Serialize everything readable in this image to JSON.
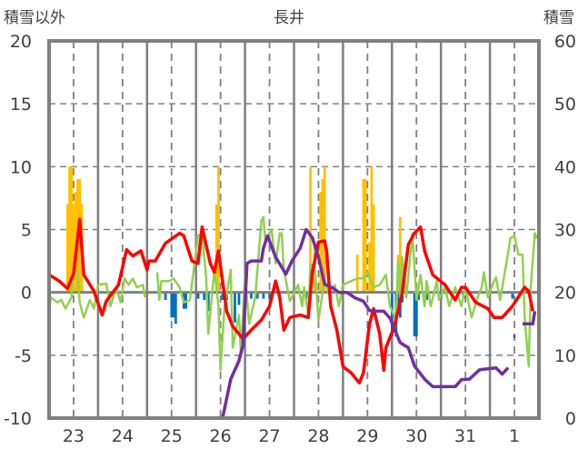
{
  "chart_data": {
    "type": "line",
    "title": "長井",
    "left_axis_label": "積雪以外",
    "right_axis_label": "積雪",
    "left_ylim": [
      -10,
      20
    ],
    "left_ticks": [
      20,
      15,
      10,
      5,
      0,
      -5,
      -10
    ],
    "right_ylim": [
      0,
      60
    ],
    "right_ticks": [
      60,
      50,
      40,
      30,
      20,
      10,
      0
    ],
    "x_unit": "hours from start of plot",
    "xlim": [
      0,
      240
    ],
    "x_tick_labels": [
      "23",
      "24",
      "25",
      "26",
      "27",
      "28",
      "29",
      "30",
      "31",
      "1"
    ],
    "grid": true,
    "colors": {
      "red": "#FF0000",
      "green": "#92D050",
      "purple": "#7030A0",
      "orange": "#FFC000",
      "blue": "#0070C0"
    },
    "series": [
      {
        "name": "red",
        "axis": "left",
        "color": "#FF0000",
        "points": [
          [
            0,
            1.4
          ],
          [
            5,
            0.9
          ],
          [
            9,
            0.3
          ],
          [
            12,
            1.5
          ],
          [
            15,
            5.8
          ],
          [
            17,
            1.4
          ],
          [
            22,
            0.1
          ],
          [
            26,
            -1.8
          ],
          [
            28,
            -0.7
          ],
          [
            34,
            0.6
          ],
          [
            38,
            3.4
          ],
          [
            41,
            2.9
          ],
          [
            45,
            3.3
          ],
          [
            48,
            1.8
          ],
          [
            49,
            2.5
          ],
          [
            52,
            2.5
          ],
          [
            57,
            3.9
          ],
          [
            64,
            4.7
          ],
          [
            66,
            4.5
          ],
          [
            70,
            2.5
          ],
          [
            73,
            2.3
          ],
          [
            75,
            5.2
          ],
          [
            79,
            2.3
          ],
          [
            81,
            1.6
          ],
          [
            83,
            3.3
          ],
          [
            87,
            -1.5
          ],
          [
            90,
            -2.7
          ],
          [
            95,
            -3.7
          ],
          [
            99,
            -3
          ],
          [
            104,
            -2.2
          ],
          [
            108,
            -1.1
          ],
          [
            111,
            0.9
          ],
          [
            113,
            -0.4
          ],
          [
            115,
            -3
          ],
          [
            118,
            -2
          ],
          [
            123,
            -1.8
          ],
          [
            127,
            -2
          ],
          [
            129,
            1.6
          ],
          [
            132,
            4
          ],
          [
            135,
            4.1
          ],
          [
            136,
            3.3
          ],
          [
            138,
            -1.1
          ],
          [
            141,
            -3
          ],
          [
            144,
            -5.9
          ],
          [
            148,
            -6.4
          ],
          [
            152,
            -7.2
          ],
          [
            154,
            -6.4
          ],
          [
            157,
            -2.5
          ],
          [
            159,
            -1.3
          ],
          [
            162,
            -3.3
          ],
          [
            164,
            -6.2
          ],
          [
            165,
            -4.4
          ],
          [
            169,
            -2.8
          ],
          [
            173,
            -0.1
          ],
          [
            176,
            3.8
          ],
          [
            179,
            4.7
          ],
          [
            182,
            5.2
          ],
          [
            184,
            3.3
          ],
          [
            188,
            1.4
          ],
          [
            194,
            0.6
          ],
          [
            199,
            -0.6
          ],
          [
            202,
            0.4
          ],
          [
            204,
            0.4
          ],
          [
            209,
            -0.8
          ],
          [
            215,
            -1.3
          ],
          [
            218,
            -2
          ],
          [
            222,
            -2
          ],
          [
            227,
            -1.1
          ],
          [
            229,
            -0.6
          ],
          [
            233,
            0.4
          ],
          [
            235,
            0.1
          ],
          [
            237,
            -1.5
          ]
        ]
      },
      {
        "name": "green",
        "axis": "left",
        "color": "#92D050",
        "points": [
          [
            0,
            -1.1
          ],
          [
            1,
            -0.4
          ],
          [
            4,
            -0.8
          ],
          [
            6,
            -0.6
          ],
          [
            8,
            -1.3
          ],
          [
            11,
            -0.4
          ],
          [
            12,
            1.8
          ],
          [
            14,
            1.6
          ],
          [
            15,
            -0.8
          ],
          [
            17,
            -2
          ],
          [
            20,
            -0.6
          ],
          [
            22,
            -1.3
          ],
          [
            24,
            0.6
          ],
          [
            28,
            0.7
          ],
          [
            30,
            -1.1
          ],
          [
            33,
            0.4
          ],
          [
            35,
            -0.8
          ],
          [
            37,
            1.1
          ],
          [
            39,
            0.6
          ],
          [
            41,
            1.1
          ],
          [
            43,
            0.4
          ],
          [
            46,
            0.6
          ],
          [
            47,
            -0.4
          ],
          null,
          [
            53,
            1.6
          ],
          [
            54,
            -0.6
          ],
          [
            55,
            0.9
          ],
          [
            59,
            0.9
          ],
          [
            61,
            1.1
          ],
          [
            64,
            0.4
          ],
          [
            66,
            -0.8
          ],
          [
            69,
            -0.6
          ],
          [
            73,
            4.5
          ],
          [
            75,
            4.7
          ],
          [
            77,
            1.1
          ],
          [
            78,
            -3.3
          ],
          [
            81,
            1.8
          ],
          [
            83,
            -1.1
          ],
          [
            84,
            -6.2
          ],
          [
            86,
            -1.1
          ],
          [
            89,
            1.8
          ],
          [
            90,
            -4.4
          ],
          [
            93,
            -1.8
          ],
          [
            94,
            -4.9
          ],
          [
            96,
            1.4
          ],
          [
            98,
            -2.5
          ],
          [
            101,
            -0.4
          ],
          [
            104,
            5.7
          ],
          [
            105,
            6
          ],
          [
            106,
            4
          ],
          [
            109,
            5
          ],
          [
            111,
            2.3
          ],
          [
            113,
            4.7
          ],
          [
            114,
            4.7
          ],
          [
            115,
            1.8
          ],
          [
            118,
            -0.7
          ],
          [
            122,
            0.6
          ],
          [
            124,
            -1.1
          ],
          [
            125,
            0.4
          ],
          [
            127,
            -1.8
          ],
          [
            128,
            2.1
          ],
          [
            130,
            2.3
          ],
          [
            132,
            -2.2
          ],
          [
            135,
            1.1
          ],
          [
            137,
            -0.1
          ],
          [
            140,
            0.6
          ],
          [
            142,
            -1.1
          ],
          [
            144,
            0.6
          ],
          [
            148,
            0.9
          ],
          [
            151,
            1.1
          ],
          [
            154,
            1.1
          ],
          [
            156,
            1.6
          ],
          [
            159,
            0.4
          ],
          [
            162,
            0.6
          ],
          [
            165,
            1.4
          ],
          [
            167,
            -1.1
          ],
          [
            170,
            -2.2
          ],
          [
            171,
            2.5
          ],
          [
            172,
            -0.4
          ],
          [
            173,
            2.8
          ],
          [
            175,
            -0.4
          ],
          [
            178,
            4.7
          ],
          [
            180,
            -0.6
          ],
          [
            182,
            1.4
          ],
          [
            184,
            -1.1
          ],
          [
            185,
            0.9
          ],
          [
            187,
            -1.1
          ],
          [
            190,
            0.9
          ],
          [
            191,
            -0.6
          ],
          [
            194,
            0.4
          ],
          [
            196,
            -1.1
          ],
          [
            199,
            0.4
          ],
          [
            202,
            -1.1
          ],
          [
            204,
            0.4
          ],
          [
            207,
            -2
          ],
          [
            210,
            -0.4
          ],
          [
            212,
            0.4
          ],
          [
            213,
            1.6
          ],
          [
            215,
            -0.4
          ],
          [
            218,
            0.9
          ],
          [
            219,
            1.2
          ],
          [
            221,
            -0.6
          ],
          [
            224,
            2.3
          ],
          [
            226,
            4.3
          ],
          [
            228,
            4.5
          ],
          [
            230,
            3
          ],
          [
            232,
            3
          ],
          [
            233,
            -2
          ],
          [
            235,
            -5.9
          ],
          [
            236,
            0.4
          ],
          [
            238,
            4.7
          ],
          [
            239,
            4.3
          ]
        ]
      },
      {
        "name": "purple",
        "axis": "right",
        "color": "#7030A0",
        "points": [
          [
            0,
            0
          ],
          [
            85,
            0
          ],
          [
            89,
            6.2
          ],
          [
            93,
            9.1
          ],
          [
            95,
            11.6
          ],
          [
            97,
            24.6
          ],
          [
            99,
            25
          ],
          [
            104,
            25
          ],
          [
            105,
            27
          ],
          [
            107,
            29
          ],
          [
            111,
            25.6
          ],
          [
            114,
            24
          ],
          [
            116,
            22.9
          ],
          [
            119,
            25
          ],
          [
            123,
            27
          ],
          [
            126,
            30
          ],
          [
            129,
            28.7
          ],
          [
            132,
            25.6
          ],
          [
            135,
            21.3
          ],
          [
            139,
            20.7
          ],
          [
            142,
            20
          ],
          [
            146,
            20
          ],
          [
            150,
            19.1
          ],
          [
            154,
            18.6
          ],
          [
            157,
            17.1
          ],
          [
            160,
            17
          ],
          [
            164,
            17
          ],
          [
            167,
            15.9
          ],
          [
            172,
            12
          ],
          [
            176,
            11.2
          ],
          [
            179,
            8.3
          ],
          [
            184,
            6.2
          ],
          [
            188,
            5
          ],
          [
            199,
            5
          ],
          [
            202,
            6.1
          ],
          [
            206,
            6.2
          ],
          [
            211,
            7.7
          ],
          [
            219,
            8
          ],
          [
            222,
            7
          ],
          [
            224,
            7.7
          ],
          [
            225,
            8
          ],
          null,
          [
            227.5,
            13
          ],
          [
            228.5,
            13
          ],
          null,
          [
            232,
            15
          ],
          [
            237,
            15
          ],
          [
            238,
            17
          ]
        ]
      }
    ],
    "bars": [
      {
        "name": "orange",
        "axis": "left",
        "color": "#FFC000",
        "points": [
          [
            9,
            7
          ],
          [
            10,
            10
          ],
          [
            11,
            10
          ],
          [
            12,
            7
          ],
          [
            13,
            8
          ],
          [
            14,
            9
          ],
          [
            15,
            9
          ],
          [
            16,
            7
          ],
          [
            82,
            7
          ],
          [
            83,
            10
          ],
          [
            128,
            10
          ],
          [
            130,
            4
          ],
          [
            133,
            8
          ],
          [
            134,
            9
          ],
          [
            135,
            10
          ],
          [
            151,
            3
          ],
          [
            154,
            9
          ],
          [
            155,
            9
          ],
          [
            157,
            4
          ],
          [
            158,
            10
          ],
          [
            159,
            7
          ],
          [
            171,
            3
          ],
          [
            172,
            6
          ],
          [
            173,
            2
          ]
        ]
      },
      {
        "name": "blue",
        "axis": "left",
        "color": "#0070C0",
        "points": [
          [
            57,
            -0.6
          ],
          [
            60,
            -2
          ],
          [
            61,
            -2
          ],
          [
            62,
            -2.5
          ],
          [
            66,
            -1.3
          ],
          [
            67,
            -1.3
          ],
          [
            73,
            -0.5
          ],
          [
            76,
            -0.6
          ],
          [
            78,
            -1.5
          ],
          [
            85,
            -0.6
          ],
          [
            87,
            -0.6
          ],
          [
            91,
            -2.4
          ],
          [
            93,
            -1
          ],
          [
            96,
            -0.6
          ],
          [
            99,
            -0.5
          ],
          [
            102,
            -0.5
          ],
          [
            105,
            -0.5
          ],
          [
            108,
            -0.5
          ],
          [
            126,
            -0.5
          ],
          [
            128,
            -0.5
          ],
          [
            168,
            -3.5
          ],
          [
            170,
            -3.5
          ],
          [
            171,
            -1
          ],
          [
            172,
            -2
          ],
          [
            173,
            -0.8
          ],
          [
            179,
            -3.5
          ],
          [
            180,
            -3.5
          ],
          [
            181,
            -0.6
          ],
          [
            185,
            -0.6
          ],
          [
            192,
            -0.5
          ],
          [
            203,
            -0.5
          ],
          [
            227,
            -0.5
          ]
        ]
      }
    ]
  }
}
